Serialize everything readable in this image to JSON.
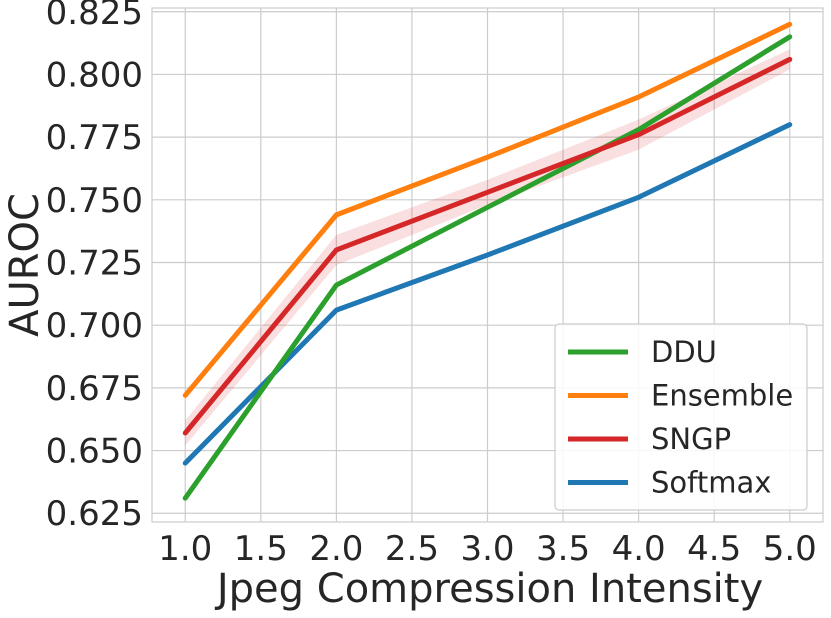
{
  "chart_data": {
    "type": "line",
    "title": "",
    "xlabel": "Jpeg Compression Intensity",
    "ylabel": "AUROC",
    "x": [
      1.0,
      2.0,
      3.0,
      4.0,
      5.0
    ],
    "xlim": [
      0.78,
      5.22
    ],
    "ylim": [
      0.6215,
      0.8265
    ],
    "xticks": [
      "1.0",
      "1.5",
      "2.0",
      "2.5",
      "3.0",
      "3.5",
      "4.0",
      "4.5",
      "5.0"
    ],
    "yticks": [
      "0.625",
      "0.650",
      "0.675",
      "0.700",
      "0.725",
      "0.750",
      "0.775",
      "0.800",
      "0.825"
    ],
    "grid": true,
    "legend_position": "lower-right",
    "series": [
      {
        "name": "DDU",
        "color": "#2ca02c",
        "values": [
          0.631,
          0.716,
          0.747,
          0.778,
          0.815
        ],
        "band": [
          0.0008,
          0.001,
          0.001,
          0.001,
          0.001
        ]
      },
      {
        "name": "Ensemble",
        "color": "#ff7f0e",
        "values": [
          0.672,
          0.744,
          0.767,
          0.791,
          0.82
        ],
        "band": [
          0.0008,
          0.0008,
          0.0008,
          0.0008,
          0.0008
        ]
      },
      {
        "name": "SNGP",
        "color": "#d62728",
        "values": [
          0.657,
          0.73,
          0.753,
          0.776,
          0.806
        ],
        "band": [
          0.005,
          0.006,
          0.005,
          0.006,
          0.004
        ]
      },
      {
        "name": "Softmax",
        "color": "#1f77b4",
        "values": [
          0.645,
          0.706,
          0.728,
          0.751,
          0.78
        ],
        "band": [
          0.0008,
          0.0008,
          0.0008,
          0.0008,
          0.0008
        ]
      }
    ]
  }
}
